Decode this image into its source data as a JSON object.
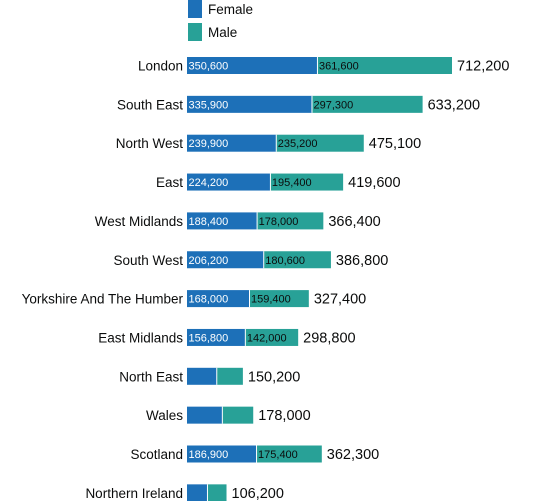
{
  "chart_data": {
    "type": "bar",
    "orientation": "horizontal",
    "stacked": true,
    "legend": [
      {
        "name": "Female",
        "color": "#1d70b8"
      },
      {
        "name": "Male",
        "color": "#28a197"
      }
    ],
    "categories": [
      "London",
      "South East",
      "North West",
      "East",
      "West Midlands",
      "South West",
      "Yorkshire And The Humber",
      "East Midlands",
      "North East",
      "Wales",
      "Scotland",
      "Northern Ireland"
    ],
    "series": [
      {
        "name": "Female",
        "color": "#1d70b8",
        "values": [
          350600,
          335900,
          239900,
          224200,
          188400,
          206200,
          168000,
          156800,
          80000,
          95000,
          186900,
          55000
        ],
        "labels": [
          "350,600",
          "335,900",
          "239,900",
          "224,200",
          "188,400",
          "206,200",
          "168,000",
          "156,800",
          "",
          "",
          "186,900",
          ""
        ]
      },
      {
        "name": "Male",
        "color": "#28a197",
        "values": [
          361600,
          297300,
          235200,
          195400,
          178000,
          180600,
          159400,
          142000,
          70200,
          83000,
          175400,
          51200
        ],
        "labels": [
          "361,600",
          "297,300",
          "235,200",
          "195,400",
          "178,000",
          "180,600",
          "159,400",
          "142,000",
          "",
          "",
          "175,400",
          ""
        ]
      }
    ],
    "totals": [
      712200,
      633200,
      475100,
      419600,
      366400,
      386800,
      327400,
      298800,
      150200,
      178000,
      362300,
      106200
    ],
    "total_labels": [
      "712,200",
      "633,200",
      "475,100",
      "419,600",
      "366,400",
      "386,800",
      "327,400",
      "298,800",
      "150,200",
      "178,000",
      "362,300",
      "106,200"
    ],
    "xlim": [
      0,
      712200
    ]
  }
}
